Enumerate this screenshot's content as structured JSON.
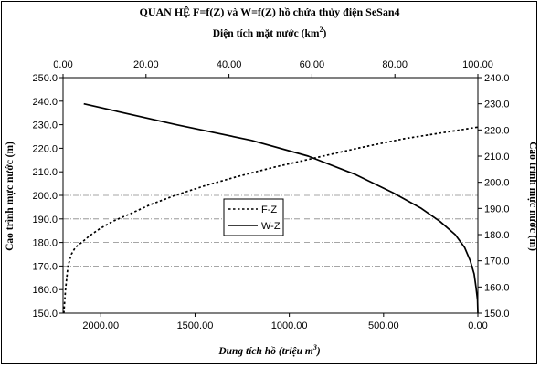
{
  "chart_data": {
    "type": "line",
    "title": "QUAN HỆ F=f(Z) và W=f(Z) hồ chứa thủy điện SeSan4",
    "top_xlabel": "Diện tích mặt nước (km",
    "top_xlabel_sup": "2",
    "top_xlabel_end": ")",
    "bottom_xlabel": "Dung tích hồ (triệu m",
    "bottom_xlabel_sup": "3",
    "bottom_xlabel_end": ")",
    "ylabel_left": "Cao trình mực nước (m)",
    "ylabel_right": "Cao trình mực nước (m)",
    "x_top": {
      "min": 0,
      "max": 100,
      "ticks": [
        "0.00",
        "20.00",
        "40.00",
        "60.00",
        "80.00",
        "100.00"
      ],
      "tick_values": [
        0,
        20,
        40,
        60,
        80,
        100
      ]
    },
    "x_bottom": {
      "min": 2200,
      "max": 0,
      "reversed": true,
      "ticks": [
        "2000.00",
        "1500.00",
        "1000.00",
        "500.00",
        "0.00"
      ],
      "tick_values": [
        2000,
        1500,
        1000,
        500,
        0
      ]
    },
    "y_left": {
      "min": 150,
      "max": 250,
      "ticks": [
        "150.0",
        "160.0",
        "170.0",
        "180.0",
        "190.0",
        "200.0",
        "210.0",
        "220.0",
        "230.0",
        "240.0",
        "250.0"
      ],
      "tick_values": [
        150,
        160,
        170,
        180,
        190,
        200,
        210,
        220,
        230,
        240,
        250
      ]
    },
    "y_right": {
      "min": 150,
      "max": 240,
      "ticks": [
        "150.0",
        "160.0",
        "170.0",
        "180.0",
        "190.0",
        "200.0",
        "210.0",
        "220.0",
        "230.0",
        "240.0"
      ],
      "tick_values": [
        150,
        160,
        170,
        180,
        190,
        200,
        210,
        220,
        230,
        240
      ]
    },
    "grid_y_values": [
      170,
      180,
      190,
      200
    ],
    "legend": {
      "placement": "center",
      "entries": [
        "F-Z",
        "W-Z"
      ]
    },
    "series": [
      {
        "name": "F-Z",
        "axis": "top-left",
        "style": "dotted",
        "x": [
          0.2,
          0.6,
          1.2,
          2.0,
          3.0,
          4.5,
          6.5,
          9.0,
          12.0,
          16.0,
          21.0,
          27.0,
          34.0,
          42.0,
          51.0,
          61.0,
          71.0,
          82.0,
          93.0,
          100.0
        ],
        "y": [
          150,
          160,
          170,
          175,
          178,
          180,
          183,
          186,
          189,
          192,
          196,
          200,
          204,
          208,
          212,
          216,
          220,
          224,
          227,
          229
        ]
      },
      {
        "name": "W-Z",
        "axis": "bottom-right",
        "style": "solid",
        "x": [
          0,
          2,
          10,
          20,
          40,
          70,
          120,
          200,
          300,
          450,
          650,
          900,
          1200,
          1600,
          2090
        ],
        "y": [
          150,
          155,
          160,
          165,
          170,
          175,
          180,
          185,
          190,
          196,
          203,
          210,
          216,
          222,
          230
        ]
      }
    ]
  }
}
